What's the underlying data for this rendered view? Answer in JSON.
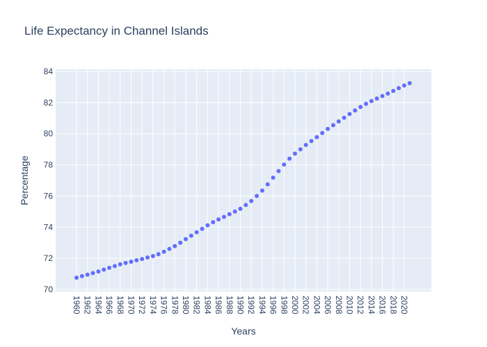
{
  "chart_data": {
    "type": "scatter",
    "title": "Life Expectancy in Channel Islands",
    "xlabel": "Years",
    "ylabel": "Percentage",
    "ylim": [
      70,
      84
    ],
    "xlim": [
      1959,
      2025
    ],
    "y_ticks": [
      70,
      72,
      74,
      76,
      78,
      80,
      82,
      84
    ],
    "x_ticks": [
      1960,
      1962,
      1964,
      1966,
      1968,
      1970,
      1972,
      1974,
      1976,
      1978,
      1980,
      1982,
      1984,
      1986,
      1988,
      1990,
      1992,
      1994,
      1996,
      1998,
      2000,
      2002,
      2004,
      2006,
      2008,
      2010,
      2012,
      2014,
      2016,
      2018,
      2020
    ],
    "grid": true,
    "marker_color": "#636efa",
    "plot_background": "#e5ecf6",
    "x": [
      1960,
      1961,
      1962,
      1963,
      1964,
      1965,
      1966,
      1967,
      1968,
      1969,
      1970,
      1971,
      1972,
      1973,
      1974,
      1975,
      1976,
      1977,
      1978,
      1979,
      1980,
      1981,
      1982,
      1983,
      1984,
      1985,
      1986,
      1987,
      1988,
      1989,
      1990,
      1991,
      1992,
      1993,
      1994,
      1995,
      1996,
      1997,
      1998,
      1999,
      2000,
      2001,
      2002,
      2003,
      2004,
      2005,
      2006,
      2007,
      2008,
      2009,
      2010,
      2011,
      2012,
      2013,
      2014,
      2015,
      2016,
      2017,
      2018,
      2019,
      2020,
      2021
    ],
    "y": [
      70.75,
      70.85,
      70.95,
      71.05,
      71.15,
      71.27,
      71.39,
      71.5,
      71.61,
      71.7,
      71.78,
      71.87,
      71.95,
      72.05,
      72.14,
      72.26,
      72.42,
      72.6,
      72.78,
      73.0,
      73.23,
      73.45,
      73.67,
      73.89,
      74.12,
      74.32,
      74.5,
      74.66,
      74.83,
      75.0,
      75.18,
      75.42,
      75.68,
      76.0,
      76.35,
      76.75,
      77.18,
      77.6,
      78.02,
      78.4,
      78.72,
      79.0,
      79.28,
      79.53,
      79.78,
      80.05,
      80.31,
      80.55,
      80.79,
      81.03,
      81.27,
      81.5,
      81.72,
      81.92,
      82.1,
      82.26,
      82.42,
      82.58,
      82.75,
      82.93,
      83.1,
      83.25
    ]
  }
}
